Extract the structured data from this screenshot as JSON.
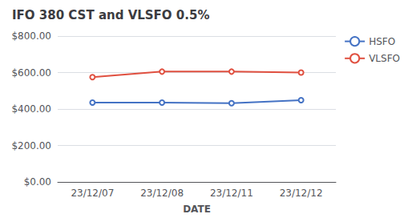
{
  "chart_data": {
    "type": "line",
    "title": "IFO 380 CST and VLSFO 0.5%",
    "xlabel": "DATE",
    "categories": [
      "23/12/07",
      "23/12/08",
      "23/12/11",
      "23/12/12"
    ],
    "series": [
      {
        "name": "HSFO",
        "color": "#4472C4",
        "values": [
          435,
          435,
          432,
          448
        ]
      },
      {
        "name": "VLSFO",
        "color": "#E05040",
        "values": [
          575,
          605,
          605,
          600
        ]
      }
    ],
    "ylim": [
      0,
      800
    ],
    "yticks": [
      {
        "value": 0,
        "label": "$0.00"
      },
      {
        "value": 200,
        "label": "$200.00"
      },
      {
        "value": 400,
        "label": "$400.00"
      },
      {
        "value": 600,
        "label": "$600.00"
      },
      {
        "value": 800,
        "label": "$800.00"
      }
    ],
    "grid": true,
    "legend": "right"
  }
}
